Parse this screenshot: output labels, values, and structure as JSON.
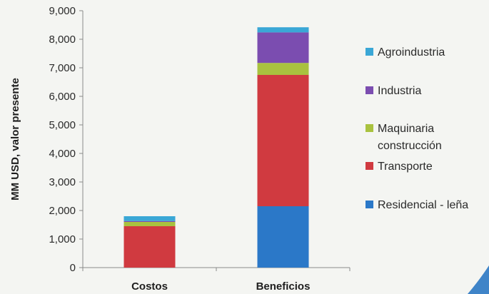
{
  "chart_data": {
    "type": "bar",
    "stacked": true,
    "categories": [
      "Costos",
      "Beneficios"
    ],
    "ylabel": "MM USD, valor presente",
    "xlabel": "",
    "ylim": [
      0,
      9000
    ],
    "yticks": [
      0,
      1000,
      2000,
      3000,
      4000,
      5000,
      6000,
      7000,
      8000,
      9000
    ],
    "ytick_labels": [
      "0",
      "1,000",
      "2,000",
      "3,000",
      "4,000",
      "5,000",
      "6,000",
      "7,000",
      "8,000",
      "9,000"
    ],
    "grid": false,
    "legend_position": "right",
    "series": [
      {
        "name": "Residencial - leña",
        "color": "#2b78c8",
        "values": [
          0,
          2150
        ]
      },
      {
        "name": "Transporte",
        "color": "#d03a40",
        "values": [
          1450,
          4600
        ]
      },
      {
        "name": "Maquinaria construcción",
        "color": "#a9c23f",
        "values": [
          150,
          420
        ]
      },
      {
        "name": "Industria",
        "color": "#7b4db0",
        "values": [
          30,
          1070
        ]
      },
      {
        "name": "Agroindustria",
        "color": "#3aa7d6",
        "values": [
          170,
          180
        ]
      }
    ],
    "legend_order": [
      "Agroindustria",
      "Industria",
      "Maquinaria construcción",
      "Transporte",
      "Residencial - leña"
    ]
  }
}
